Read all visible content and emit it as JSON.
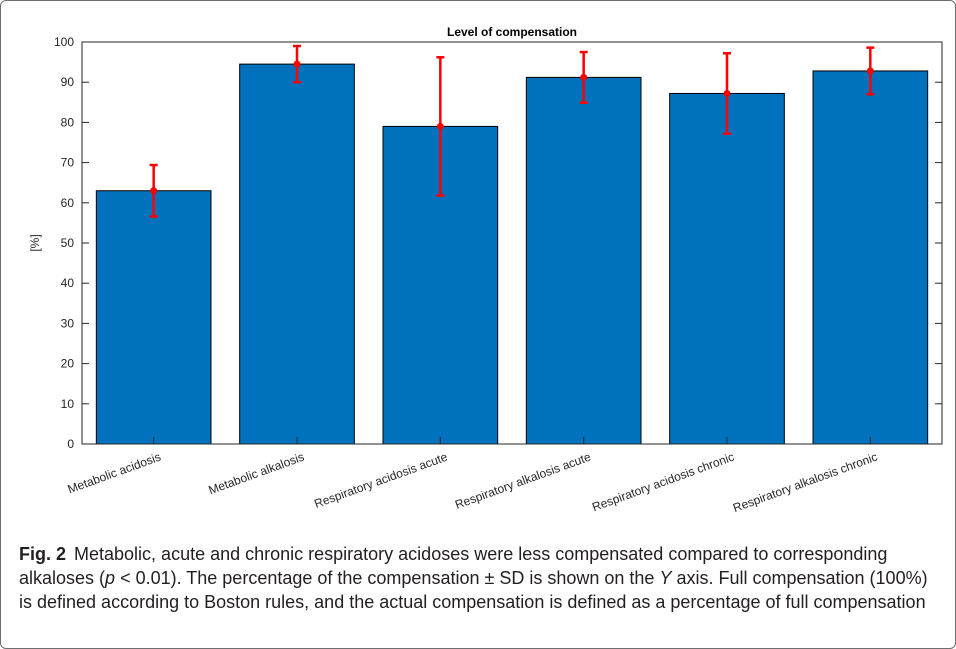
{
  "chart_data": {
    "type": "bar",
    "title": "Level of compensation",
    "xlabel": "",
    "ylabel": "[%]",
    "ylim": [
      0,
      100
    ],
    "yticks": [
      0,
      10,
      20,
      30,
      40,
      50,
      60,
      70,
      80,
      90,
      100
    ],
    "grid": false,
    "categories": [
      "Metabolic acidosis",
      "Metabolic alkalosis",
      "Respiratory acidosis acute",
      "Respiratory alkalosis acute",
      "Respiratory acidosis chronic",
      "Respiratory alkalosis chronic"
    ],
    "values": [
      63,
      94.5,
      79,
      91.2,
      87.2,
      92.8
    ],
    "error_sd": [
      6.4,
      4.5,
      17.2,
      6.3,
      10,
      5.8
    ],
    "bar_color": "#0072bd",
    "error_color": "#ff0000"
  },
  "caption": {
    "label": "Fig. 2",
    "parts": [
      {
        "t": "Metabolic, acute and chronic respiratory acidoses were less compensated compared to corresponding alkaloses ("
      },
      {
        "t": "p",
        "i": true
      },
      {
        "t": " < 0.01). The percentage of the compensation ± SD is shown on the "
      },
      {
        "t": "Y",
        "i": true
      },
      {
        "t": " axis. Full compensation (100%) is defined according to Boston rules, and the actual compensation is defined as a percentage of full compensation"
      }
    ]
  }
}
